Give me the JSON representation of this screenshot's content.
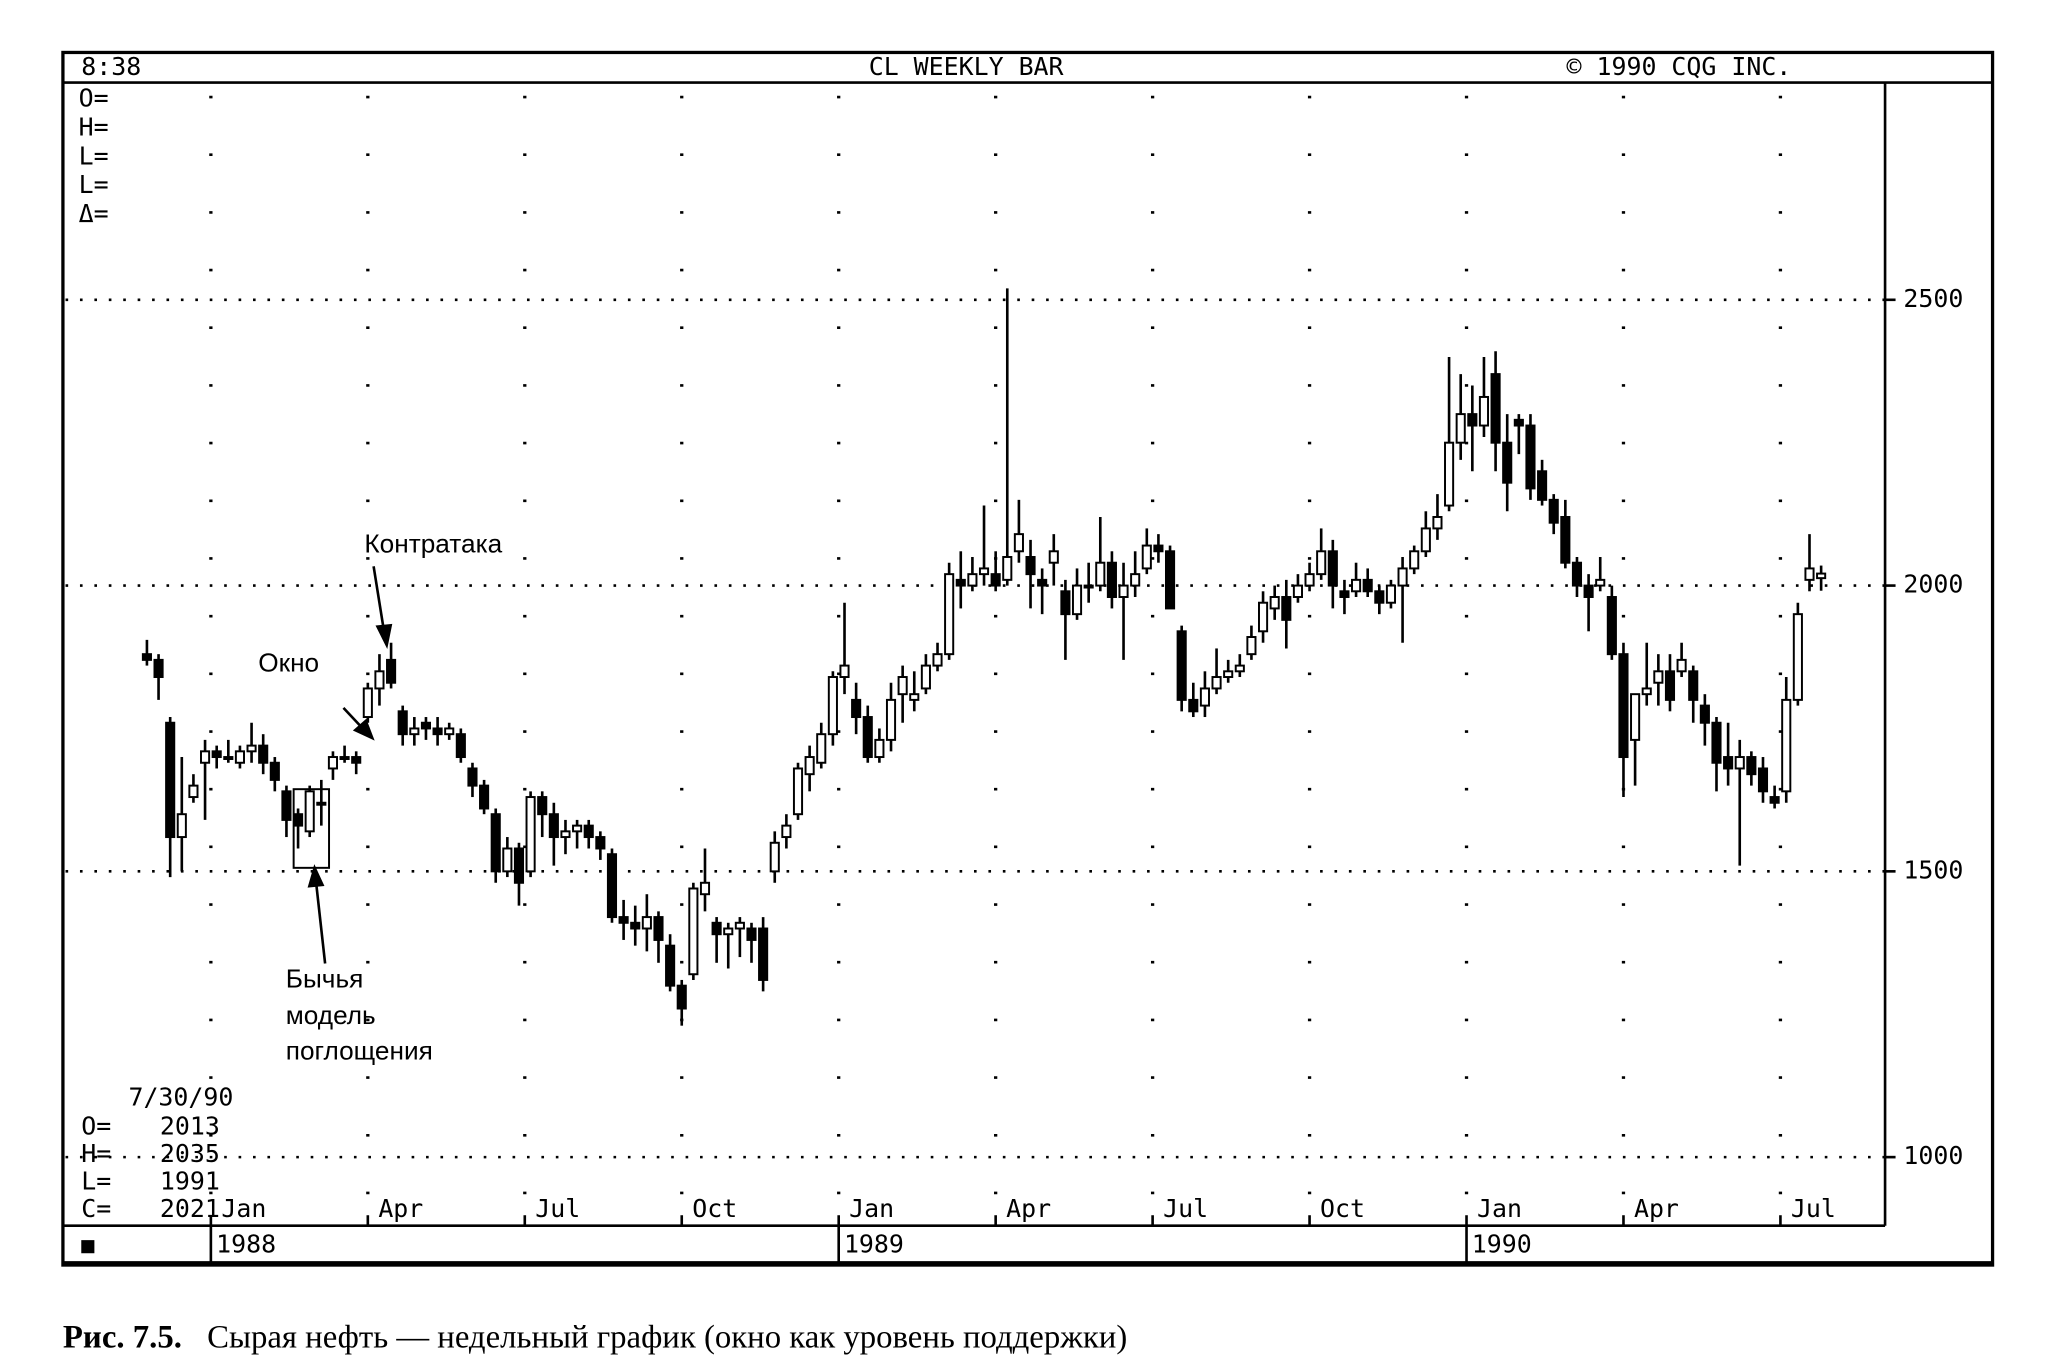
{
  "chart_data": {
    "type": "candlestick",
    "title": "CL WEEKLY BAR",
    "header_left": "8:38",
    "header_right": "© 1990 CQG INC.",
    "top_readout": [
      "O=",
      "H=",
      "L=",
      "L=",
      "Δ="
    ],
    "last_bar": {
      "date": "7/30/90",
      "rows": [
        {
          "label": "O=",
          "value": 2013
        },
        {
          "label": "H=",
          "value": 2035
        },
        {
          "label": "L=",
          "value": 1991
        },
        {
          "label": "C=",
          "value": 2021
        }
      ]
    },
    "annotations": {
      "counterattack": "Контратака",
      "window": "Окно",
      "engulfing": [
        "Бычья",
        "модель",
        "поглощения"
      ]
    },
    "caption": {
      "label": "Рис. 7.5.",
      "text": "Сырая нефть — недельный график (окно как уровень поддержки)"
    },
    "ylim": [
      880,
      2880
    ],
    "yticks": [
      1000,
      1500,
      2000,
      2500
    ],
    "xlim": [
      -7,
      149.5
    ],
    "xticks": [
      {
        "value": 5.5,
        "label": "Jan"
      },
      {
        "value": 19,
        "label": "Apr"
      },
      {
        "value": 32.5,
        "label": "Jul"
      },
      {
        "value": 46,
        "label": "Oct"
      },
      {
        "value": 59.5,
        "label": "Jan"
      },
      {
        "value": 73,
        "label": "Apr"
      },
      {
        "value": 86.5,
        "label": "Jul"
      },
      {
        "value": 100,
        "label": "Oct"
      },
      {
        "value": 113.5,
        "label": "Jan"
      },
      {
        "value": 127,
        "label": "Apr"
      },
      {
        "value": 140.5,
        "label": "Jul"
      }
    ],
    "year_ticks": [
      {
        "value": 5.5,
        "label": "1988"
      },
      {
        "value": 59.5,
        "label": "1989"
      },
      {
        "value": 113.5,
        "label": "1990"
      }
    ],
    "grid": true,
    "color": "#000000",
    "open": [
      1880,
      1870,
      1760,
      1560,
      1630,
      1690,
      1710,
      1700,
      1690,
      1710,
      1720,
      1690,
      1640,
      1600,
      1570,
      1620,
      1680,
      1700,
      1700,
      1770,
      1820,
      1870,
      1780,
      1740,
      1760,
      1750,
      1740,
      1740,
      1680,
      1650,
      1600,
      1500,
      1540,
      1500,
      1630,
      1600,
      1560,
      1570,
      1580,
      1560,
      1530,
      1420,
      1410,
      1400,
      1420,
      1370,
      1300,
      1320,
      1460,
      1410,
      1390,
      1400,
      1400,
      1400,
      1500,
      1560,
      1600,
      1670,
      1690,
      1740,
      1840,
      1800,
      1770,
      1700,
      1730,
      1810,
      1800,
      1820,
      1860,
      1880,
      2010,
      2000,
      2020,
      2020,
      2010,
      2060,
      2050,
      2010,
      2040,
      1990,
      1950,
      2000,
      2000,
      2040,
      1980,
      2000,
      2030,
      2070,
      2060,
      1920,
      1800,
      1790,
      1820,
      1840,
      1850,
      1880,
      1920,
      1960,
      1980,
      1980,
      2000,
      2020,
      2060,
      1990,
      1990,
      2010,
      1990,
      1970,
      2000,
      2030,
      2060,
      2100,
      2140,
      2250,
      2300,
      2280,
      2370,
      2250,
      2290,
      2280,
      2200,
      2150,
      2120,
      2040,
      2000,
      2000,
      1980,
      1880,
      1730,
      1810,
      1830,
      1850,
      1850,
      1850,
      1790,
      1760,
      1700,
      1680,
      1700,
      1680,
      1630,
      1640,
      1800,
      2010,
      2013
    ],
    "high": [
      1905,
      1880,
      1770,
      1700,
      1670,
      1730,
      1720,
      1730,
      1720,
      1760,
      1740,
      1700,
      1650,
      1610,
      1650,
      1660,
      1710,
      1720,
      1710,
      1830,
      1880,
      1900,
      1790,
      1770,
      1770,
      1770,
      1760,
      1750,
      1690,
      1660,
      1610,
      1560,
      1550,
      1640,
      1640,
      1620,
      1590,
      1590,
      1590,
      1570,
      1540,
      1450,
      1440,
      1460,
      1430,
      1390,
      1310,
      1480,
      1540,
      1420,
      1410,
      1420,
      1410,
      1420,
      1570,
      1600,
      1690,
      1720,
      1760,
      1850,
      1970,
      1830,
      1790,
      1750,
      1830,
      1860,
      1850,
      1880,
      1900,
      2040,
      2060,
      2050,
      2140,
      2060,
      2520,
      2150,
      2080,
      2030,
      2090,
      2010,
      2030,
      2040,
      2120,
      2060,
      2040,
      2060,
      2100,
      2090,
      2070,
      1930,
      1830,
      1850,
      1890,
      1870,
      1880,
      1930,
      1990,
      2000,
      2010,
      2020,
      2040,
      2100,
      2080,
      2010,
      2040,
      2030,
      2000,
      2010,
      2050,
      2070,
      2130,
      2160,
      2400,
      2370,
      2350,
      2400,
      2410,
      2300,
      2300,
      2300,
      2220,
      2160,
      2150,
      2050,
      2020,
      2050,
      2000,
      1900,
      1810,
      1900,
      1880,
      1880,
      1900,
      1860,
      1810,
      1770,
      1760,
      1730,
      1710,
      1700,
      1650,
      1840,
      1970,
      2090,
      2035
    ],
    "low": [
      1860,
      1800,
      1490,
      1500,
      1620,
      1590,
      1680,
      1690,
      1680,
      1690,
      1670,
      1640,
      1560,
      1540,
      1560,
      1580,
      1660,
      1690,
      1670,
      1760,
      1790,
      1820,
      1720,
      1720,
      1730,
      1720,
      1730,
      1690,
      1630,
      1600,
      1480,
      1490,
      1440,
      1490,
      1560,
      1510,
      1530,
      1540,
      1540,
      1520,
      1410,
      1380,
      1370,
      1360,
      1340,
      1290,
      1230,
      1310,
      1430,
      1340,
      1330,
      1350,
      1340,
      1290,
      1480,
      1540,
      1590,
      1640,
      1680,
      1720,
      1810,
      1740,
      1690,
      1690,
      1710,
      1760,
      1780,
      1810,
      1850,
      1870,
      1960,
      1990,
      2000,
      1990,
      2000,
      2040,
      1960,
      1950,
      2000,
      1870,
      1940,
      1970,
      1990,
      1960,
      1870,
      1980,
      2020,
      2040,
      1960,
      1780,
      1770,
      1770,
      1810,
      1830,
      1840,
      1870,
      1900,
      1940,
      1890,
      1970,
      1990,
      2010,
      1960,
      1950,
      1980,
      1980,
      1950,
      1960,
      1900,
      2020,
      2050,
      2080,
      2130,
      2220,
      2200,
      2260,
      2200,
      2130,
      2230,
      2150,
      2140,
      2090,
      2030,
      1980,
      1920,
      1990,
      1870,
      1630,
      1650,
      1790,
      1790,
      1780,
      1840,
      1760,
      1720,
      1640,
      1650,
      1510,
      1650,
      1620,
      1610,
      1620,
      1790,
      1990,
      1991
    ],
    "close": [
      1870,
      1840,
      1560,
      1600,
      1650,
      1710,
      1700,
      1700,
      1710,
      1720,
      1690,
      1660,
      1590,
      1580,
      1640,
      1620,
      1700,
      1700,
      1690,
      1820,
      1850,
      1830,
      1740,
      1750,
      1750,
      1740,
      1750,
      1700,
      1650,
      1610,
      1500,
      1540,
      1480,
      1630,
      1600,
      1560,
      1570,
      1580,
      1560,
      1540,
      1420,
      1410,
      1400,
      1420,
      1380,
      1300,
      1260,
      1470,
      1480,
      1390,
      1400,
      1410,
      1380,
      1310,
      1550,
      1580,
      1680,
      1700,
      1740,
      1840,
      1860,
      1770,
      1700,
      1730,
      1800,
      1840,
      1810,
      1860,
      1880,
      2020,
      2000,
      2020,
      2030,
      2000,
      2050,
      2090,
      2020,
      2000,
      2060,
      1950,
      2000,
      2000,
      2040,
      1980,
      2000,
      2020,
      2070,
      2060,
      1960,
      1800,
      1780,
      1820,
      1840,
      1850,
      1860,
      1910,
      1970,
      1980,
      1940,
      2000,
      2020,
      2060,
      2000,
      1980,
      2010,
      1990,
      1970,
      2000,
      2030,
      2060,
      2100,
      2120,
      2250,
      2300,
      2280,
      2330,
      2250,
      2180,
      2280,
      2170,
      2150,
      2110,
      2040,
      2000,
      1980,
      2010,
      1880,
      1700,
      1810,
      1820,
      1850,
      1800,
      1870,
      1800,
      1760,
      1690,
      1680,
      1700,
      1670,
      1640,
      1620,
      1800,
      1950,
      2030,
      2021
    ]
  }
}
